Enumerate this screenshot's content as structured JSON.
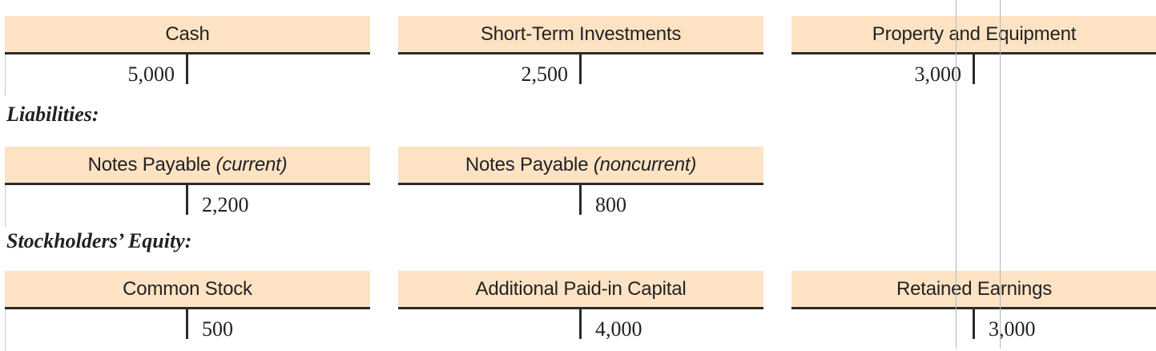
{
  "sections": {
    "liabilities": "Liabilities:",
    "equity": "Stockholders’ Equity:"
  },
  "accounts": {
    "cash": {
      "title": "Cash",
      "debit": "5,000"
    },
    "short_term_investments": {
      "title": "Short-Term Investments",
      "debit": "2,500"
    },
    "property_equipment": {
      "title": "Property and Equipment",
      "debit": "3,000"
    },
    "notes_payable_current": {
      "title": "Notes Payable",
      "title_note": "(current)",
      "credit": "2,200"
    },
    "notes_payable_noncurrent": {
      "title": "Notes Payable",
      "title_note": "(noncurrent)",
      "credit": "800"
    },
    "common_stock": {
      "title": "Common Stock",
      "credit": "500"
    },
    "apic": {
      "title": "Additional Paid-in Capital",
      "credit": "4,000"
    },
    "retained_earnings": {
      "title": "Retained Earnings",
      "credit": "3,000"
    }
  },
  "colors": {
    "header_fill": "#fde3c4",
    "rule": "#2b2b2b"
  }
}
